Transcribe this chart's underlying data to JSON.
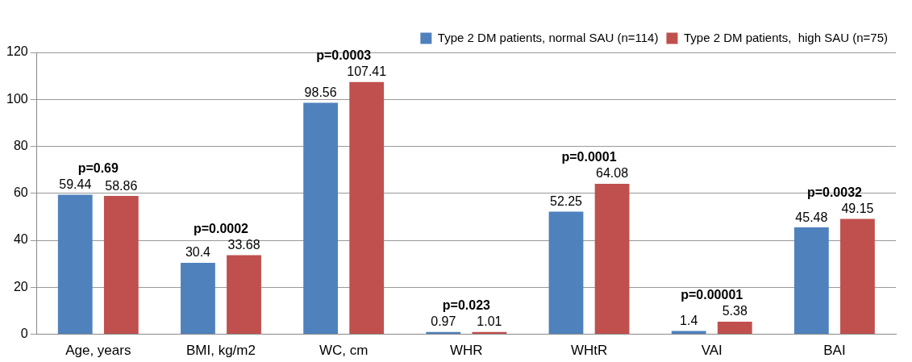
{
  "chart_data": {
    "type": "bar",
    "categories": [
      "Age, years",
      "BMI, kg/m2",
      "WC, cm",
      "WHR",
      "WHtR",
      "VAI",
      "BAI"
    ],
    "series": [
      {
        "name": "Type 2 DM patients, normal SAU (n=114)",
        "color": "#4f81bd",
        "values": [
          59.44,
          30.4,
          98.56,
          0.97,
          52.25,
          1.4,
          45.48
        ]
      },
      {
        "name": "Type 2 DM patients,  high SAU (n=75)",
        "color": "#c0504d",
        "values": [
          58.86,
          33.68,
          107.41,
          1.01,
          64.08,
          5.38,
          49.15
        ]
      }
    ],
    "ylim": [
      0,
      120
    ],
    "yticks": [
      0,
      20,
      40,
      60,
      80,
      100,
      120
    ],
    "grid": "y",
    "legend": "top right",
    "data_labels": true,
    "annotations": [
      "p=0.69",
      "p=0.0002",
      "p=0.0003",
      "p=0.023",
      "p=0.0001",
      "p=0.00001",
      "p=0.0032"
    ]
  }
}
